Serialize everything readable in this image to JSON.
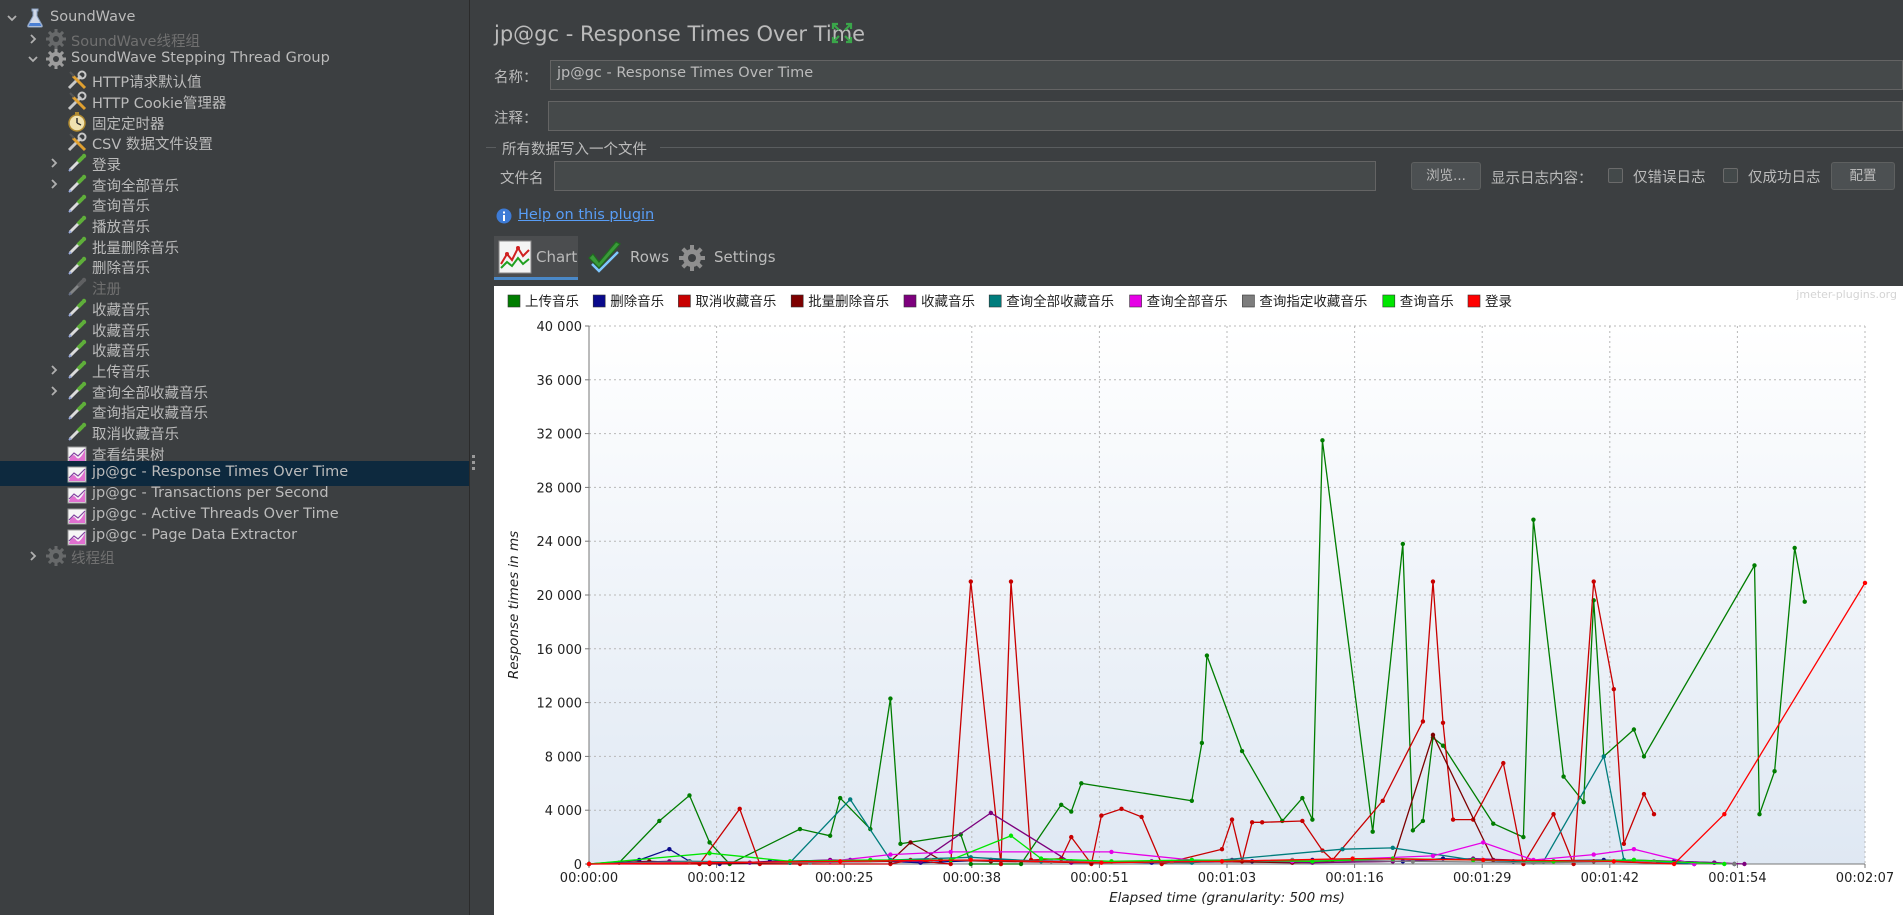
{
  "tree": {
    "items": [
      {
        "label": "SoundWave",
        "icon": "flask-icon",
        "arrow": "down",
        "disabled": false
      },
      {
        "label": "SoundWave线程组",
        "icon": "gear-icon",
        "arrow": "right",
        "disabled": true
      },
      {
        "label": "SoundWave Stepping Thread Group",
        "icon": "gear-icon",
        "arrow": "down",
        "disabled": false
      },
      {
        "label": "HTTP请求默认值",
        "icon": "wrench-icon",
        "arrow": "",
        "disabled": false
      },
      {
        "label": "HTTP Cookie管理器",
        "icon": "wrench-icon",
        "arrow": "",
        "disabled": false
      },
      {
        "label": "固定定时器",
        "icon": "timer-icon",
        "arrow": "",
        "disabled": false
      },
      {
        "label": "CSV 数据文件设置",
        "icon": "wrench-icon",
        "arrow": "",
        "disabled": false
      },
      {
        "label": "登录",
        "icon": "pipette-icon",
        "arrow": "right",
        "disabled": false
      },
      {
        "label": "查询全部音乐",
        "icon": "pipette-icon",
        "arrow": "right",
        "disabled": false
      },
      {
        "label": "查询音乐",
        "icon": "pipette-icon",
        "arrow": "",
        "disabled": false
      },
      {
        "label": "播放音乐",
        "icon": "pipette-icon",
        "arrow": "",
        "disabled": false
      },
      {
        "label": "批量删除音乐",
        "icon": "pipette-icon",
        "arrow": "",
        "disabled": false
      },
      {
        "label": "删除音乐",
        "icon": "pipette-icon",
        "arrow": "",
        "disabled": false
      },
      {
        "label": "注册",
        "icon": "pipette-icon",
        "arrow": "",
        "disabled": true
      },
      {
        "label": "收藏音乐",
        "icon": "pipette-icon",
        "arrow": "",
        "disabled": false
      },
      {
        "label": "收藏音乐",
        "icon": "pipette-icon",
        "arrow": "",
        "disabled": false
      },
      {
        "label": "收藏音乐",
        "icon": "pipette-icon",
        "arrow": "",
        "disabled": false
      },
      {
        "label": "上传音乐",
        "icon": "pipette-icon",
        "arrow": "right",
        "disabled": false
      },
      {
        "label": "查询全部收藏音乐",
        "icon": "pipette-icon",
        "arrow": "right",
        "disabled": false
      },
      {
        "label": "查询指定收藏音乐",
        "icon": "pipette-icon",
        "arrow": "",
        "disabled": false
      },
      {
        "label": "取消收藏音乐",
        "icon": "pipette-icon",
        "arrow": "",
        "disabled": false
      },
      {
        "label": "查看结果树",
        "icon": "graph-icon",
        "arrow": "",
        "disabled": false
      },
      {
        "label": "jp@gc - Response Times Over Time",
        "icon": "graph-icon",
        "arrow": "",
        "disabled": false,
        "selected": true
      },
      {
        "label": "jp@gc - Transactions per Second",
        "icon": "graph-icon",
        "arrow": "",
        "disabled": false
      },
      {
        "label": "jp@gc - Active Threads Over Time",
        "icon": "graph-icon",
        "arrow": "",
        "disabled": false
      },
      {
        "label": "jp@gc - Page Data Extractor",
        "icon": "graph-icon",
        "arrow": "",
        "disabled": false
      },
      {
        "label": "线程组",
        "icon": "gear-icon",
        "arrow": "right",
        "disabled": true
      }
    ]
  },
  "panel": {
    "title": "jp@gc - Response Times Over Time",
    "name_label": "名称：",
    "name_value": "jp@gc - Response Times Over Time",
    "comment_label": "注释：",
    "comment_value": "",
    "group_title": "所有数据写入一个文件",
    "file_label": "文件名",
    "file_value": "",
    "browse_button": "浏览...",
    "log_label": "显示日志内容：",
    "errors_only": "仅错误日志",
    "success_only": "仅成功日志",
    "config_button": "配置",
    "help_link": "Help on this plugin"
  },
  "tabs": [
    {
      "label": "Chart",
      "icon": "chart-icon",
      "active": true
    },
    {
      "label": "Rows",
      "icon": "checkmark-icon",
      "active": false
    },
    {
      "label": "Settings",
      "icon": "gear-icon",
      "active": false
    }
  ],
  "chart_data": {
    "type": "line",
    "watermark": "jmeter-plugins.org",
    "xlabel": "Elapsed time (granularity: 500 ms)",
    "ylabel": "Response times in ms",
    "ylim": [
      0,
      40000
    ],
    "yticks": [
      "0",
      "4 000",
      "8 000",
      "12 000",
      "16 000",
      "20 000",
      "24 000",
      "28 000",
      "32 000",
      "36 000",
      "40 000"
    ],
    "xticks": [
      "00:00:00",
      "00:00:12",
      "00:00:25",
      "00:00:38",
      "00:00:51",
      "00:01:03",
      "00:01:16",
      "00:01:29",
      "00:01:42",
      "00:01:54",
      "00:02:07"
    ],
    "xlim_seconds": [
      0,
      127
    ],
    "grid": true,
    "legend_position": "top",
    "series": [
      {
        "name": "上传音乐",
        "color": "#007d00",
        "x": [
          0,
          3,
          7,
          10,
          12,
          14,
          21,
          24,
          25,
          28,
          30,
          31,
          37,
          38,
          41,
          43,
          47,
          48,
          49,
          60,
          61,
          61.5,
          65,
          69,
          71,
          72,
          73,
          78,
          81,
          82,
          83,
          84,
          85,
          90,
          93,
          94,
          97,
          99,
          100,
          101,
          104,
          105,
          116,
          116.5,
          118,
          120,
          121
        ],
        "y": [
          0,
          100,
          3200,
          5100,
          1600,
          0,
          2600,
          2100,
          4900,
          2600,
          12300,
          1500,
          2200,
          0,
          0,
          0,
          4400,
          3900,
          6000,
          4700,
          9000,
          15500,
          8400,
          3200,
          4900,
          3300,
          31500,
          2400,
          23800,
          2500,
          3200,
          9400,
          8800,
          3000,
          2000,
          25600,
          6500,
          4600,
          19600,
          8000,
          10000,
          8000,
          22200,
          3700,
          6900,
          23500,
          19500
        ]
      },
      {
        "name": "删除音乐",
        "color": "#0a0a8c",
        "x": [
          0,
          5,
          8,
          10,
          13,
          18,
          26,
          33,
          40,
          48,
          56,
          66,
          72,
          81,
          85,
          92,
          101,
          108,
          112,
          114
        ],
        "y": [
          0,
          300,
          1100,
          200,
          0,
          200,
          300,
          100,
          300,
          200,
          100,
          200,
          300,
          200,
          400,
          200,
          300,
          200,
          100,
          0
        ]
      },
      {
        "name": "取消收藏音乐",
        "color": "#c80000",
        "x": [
          0,
          11,
          15,
          17,
          21,
          30,
          32,
          36,
          38,
          41,
          42,
          44,
          47,
          48,
          50,
          51,
          53,
          55,
          57,
          63,
          64,
          65,
          66,
          67,
          71,
          73,
          74,
          79,
          83,
          84,
          85,
          86,
          88,
          91,
          93,
          96,
          98,
          100,
          102,
          103,
          105,
          106
        ],
        "y": [
          0,
          0,
          4100,
          0,
          0,
          0,
          300,
          0,
          21000,
          0,
          21000,
          300,
          400,
          2000,
          0,
          3600,
          4100,
          3500,
          0,
          1100,
          3300,
          200,
          3100,
          3100,
          3200,
          1000,
          300,
          4700,
          10600,
          21000,
          10500,
          3300,
          3300,
          7500,
          0,
          3700,
          0,
          21000,
          13000,
          1500,
          5200,
          3700
        ]
      },
      {
        "name": "批量删除音乐",
        "color": "#7d0000",
        "x": [
          0,
          6,
          12,
          20,
          30,
          32,
          35,
          40,
          50,
          60,
          70,
          80,
          84,
          90,
          100,
          110
        ],
        "y": [
          0,
          200,
          0,
          100,
          200,
          1600,
          300,
          200,
          100,
          200,
          100,
          200,
          9600,
          300,
          200,
          0
        ]
      },
      {
        "name": "收藏音乐",
        "color": "#7d007d",
        "x": [
          0,
          8,
          16,
          24,
          33,
          40,
          48,
          56,
          64,
          72,
          80,
          88,
          96,
          104,
          112,
          115
        ],
        "y": [
          0,
          200,
          100,
          300,
          200,
          3800,
          100,
          200,
          300,
          100,
          200,
          400,
          200,
          300,
          100,
          0
        ]
      },
      {
        "name": "查询全部收藏音乐",
        "color": "#007d7d",
        "x": [
          0,
          10,
          20,
          26,
          30,
          38,
          45,
          60,
          75,
          80,
          88,
          95,
          101,
          103,
          110
        ],
        "y": [
          0,
          200,
          100,
          4800,
          300,
          500,
          200,
          100,
          1100,
          1200,
          300,
          200,
          8000,
          300,
          0
        ]
      },
      {
        "name": "查询全部音乐",
        "color": "#e600e6",
        "x": [
          0,
          12,
          24,
          30,
          36,
          52,
          60,
          70,
          84,
          89,
          94,
          100,
          104,
          110
        ],
        "y": [
          0,
          100,
          200,
          700,
          900,
          900,
          300,
          200,
          600,
          1600,
          300,
          700,
          1100,
          0
        ]
      },
      {
        "name": "查询指定收藏音乐",
        "color": "#7d7d7d",
        "x": [
          0,
          10,
          22,
          34,
          46,
          58,
          70,
          82,
          94,
          106,
          114
        ],
        "y": [
          0,
          150,
          100,
          300,
          200,
          150,
          300,
          200,
          100,
          200,
          0
        ]
      },
      {
        "name": "查询音乐",
        "color": "#00e600",
        "x": [
          0,
          12,
          20,
          28,
          36,
          42,
          45,
          52,
          60,
          72,
          80,
          88,
          96,
          104,
          113
        ],
        "y": [
          0,
          800,
          200,
          300,
          300,
          2100,
          400,
          200,
          300,
          200,
          400,
          300,
          200,
          300,
          0
        ]
      },
      {
        "name": "登录",
        "color": "#ff0000",
        "x": [
          0,
          12,
          25,
          38,
          51,
          63,
          76,
          89,
          102,
          108,
          113,
          127
        ],
        "y": [
          0,
          100,
          200,
          300,
          100,
          200,
          400,
          300,
          200,
          0,
          3700,
          20900
        ]
      }
    ]
  }
}
